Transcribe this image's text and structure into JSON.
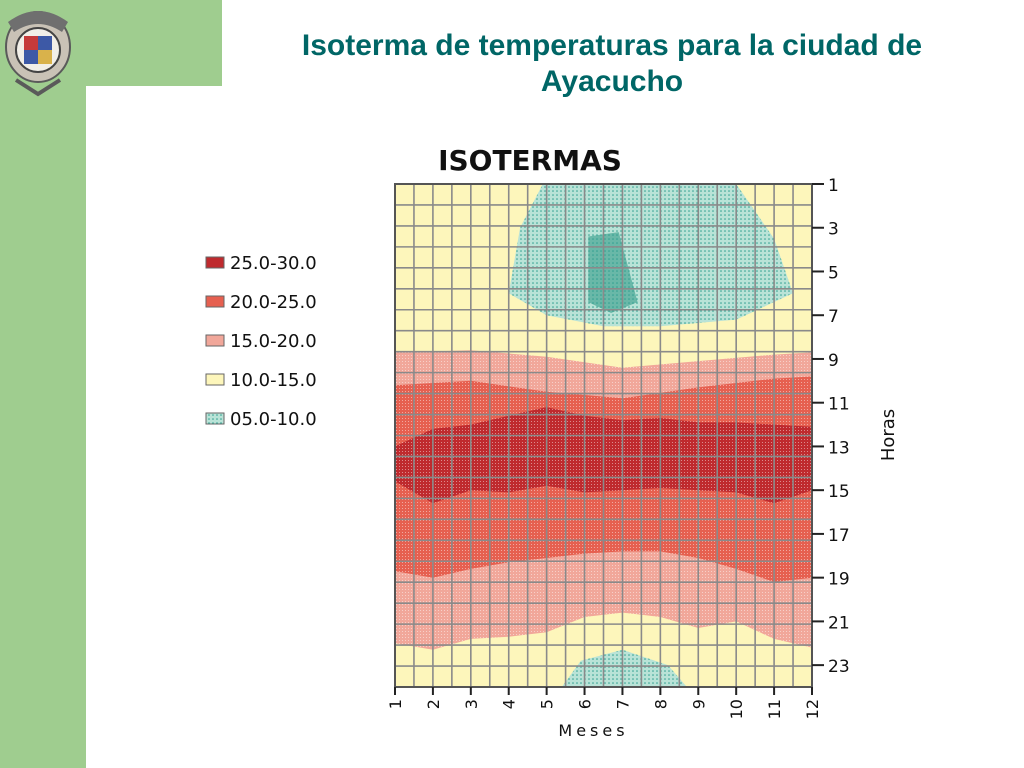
{
  "slide": {
    "title": "Isoterma de temperaturas para la ciudad de Ayacucho"
  },
  "logo": {
    "icon": "university-crest-icon"
  },
  "colors": {
    "sidebar": "#9fcd8f",
    "title": "#006666",
    "band_05_10": "#b9e3d7",
    "band_10_15": "#fdf6bb",
    "band_15_20": "#f1a79a",
    "band_20_25": "#e66050",
    "band_25_30": "#bf2a2e",
    "grid": "#8a8a8a"
  },
  "chart_data": {
    "type": "heatmap",
    "title": "ISOTERMAS",
    "xlabel": "Meses",
    "ylabel": "Horas",
    "x": [
      1,
      2,
      3,
      4,
      5,
      6,
      7,
      8,
      9,
      10,
      11,
      12
    ],
    "x_ticks": [
      "1",
      "2",
      "3",
      "4",
      "5",
      "6",
      "7",
      "8",
      "9",
      "10",
      "11",
      "12"
    ],
    "y_ticks": [
      "1",
      "3",
      "5",
      "7",
      "9",
      "11",
      "13",
      "15",
      "17",
      "19",
      "21",
      "23"
    ],
    "xlim": [
      1,
      12
    ],
    "ylim": [
      1,
      24
    ],
    "grid": true,
    "legend_position": "left",
    "legend": [
      {
        "label": "25.0-30.0",
        "color": "#bf2a2e"
      },
      {
        "label": "20.0-25.0",
        "color": "#e66050"
      },
      {
        "label": "15.0-20.0",
        "color": "#f1a79a"
      },
      {
        "label": "10.0-15.0",
        "color": "#fdf6bb"
      },
      {
        "label": "05.0-10.0",
        "color": "#b9e3d7"
      }
    ],
    "regions": [
      {
        "band": "05.0-10.0",
        "color": "#b9e3d7",
        "points": [
          [
            4.9,
            1
          ],
          [
            10,
            1
          ],
          [
            11,
            3.5
          ],
          [
            11.5,
            6
          ],
          [
            10,
            7.2
          ],
          [
            8,
            7.5
          ],
          [
            6.5,
            7.5
          ],
          [
            5,
            7
          ],
          [
            4,
            6
          ],
          [
            4.3,
            3
          ]
        ]
      },
      {
        "band": "05.0-10.0",
        "color": "#b9e3d7",
        "points": [
          [
            5.4,
            24
          ],
          [
            5.9,
            22.8
          ],
          [
            7,
            22.3
          ],
          [
            8.2,
            23
          ],
          [
            8.7,
            24
          ]
        ]
      },
      {
        "band": "15.0-20.0",
        "color": "#f1a79a",
        "points": [
          [
            1,
            8.7
          ],
          [
            3,
            8.6
          ],
          [
            5,
            8.9
          ],
          [
            7,
            9.4
          ],
          [
            9,
            9.1
          ],
          [
            11,
            8.8
          ],
          [
            12,
            8.7
          ],
          [
            12,
            22.2
          ],
          [
            11,
            21.8
          ],
          [
            10,
            21
          ],
          [
            9,
            21.3
          ],
          [
            8,
            20.8
          ],
          [
            7,
            20.6
          ],
          [
            6,
            20.8
          ],
          [
            5,
            21.5
          ],
          [
            4,
            21.7
          ],
          [
            3,
            21.8
          ],
          [
            2,
            22.3
          ],
          [
            1,
            22
          ]
        ]
      },
      {
        "band": "20.0-25.0",
        "color": "#e66050",
        "points": [
          [
            1,
            10.2
          ],
          [
            3,
            10
          ],
          [
            5,
            10.5
          ],
          [
            7,
            10.8
          ],
          [
            9,
            10.3
          ],
          [
            11,
            9.9
          ],
          [
            12,
            9.8
          ],
          [
            12,
            19
          ],
          [
            11,
            19.2
          ],
          [
            10,
            18.6
          ],
          [
            9,
            18.1
          ],
          [
            8,
            17.8
          ],
          [
            7,
            17.8
          ],
          [
            6,
            17.9
          ],
          [
            5,
            18.1
          ],
          [
            4,
            18.3
          ],
          [
            3,
            18.6
          ],
          [
            2,
            19
          ],
          [
            1,
            18.7
          ]
        ]
      },
      {
        "band": "25.0-30.0",
        "color": "#bf2a2e",
        "points": [
          [
            1,
            13
          ],
          [
            2,
            12.2
          ],
          [
            3,
            12
          ],
          [
            4,
            11.6
          ],
          [
            5,
            11.2
          ],
          [
            6,
            11.6
          ],
          [
            7,
            11.8
          ],
          [
            8,
            11.7
          ],
          [
            9,
            11.9
          ],
          [
            10,
            11.9
          ],
          [
            11,
            12
          ],
          [
            12,
            12.1
          ],
          [
            12,
            15
          ],
          [
            11,
            15.6
          ],
          [
            10,
            15.1
          ],
          [
            9,
            15
          ],
          [
            8,
            14.9
          ],
          [
            7,
            15
          ],
          [
            6,
            15.1
          ],
          [
            5,
            14.8
          ],
          [
            4,
            15.1
          ],
          [
            3,
            15
          ],
          [
            2,
            15.6
          ],
          [
            1,
            14.6
          ]
        ]
      },
      {
        "band": "05.0-10.0",
        "color": "#69b8a8",
        "points": [
          [
            6.1,
            3.4
          ],
          [
            6.9,
            3.2
          ],
          [
            7.4,
            6.4
          ],
          [
            6.7,
            6.9
          ],
          [
            6.1,
            6.4
          ]
        ]
      }
    ]
  }
}
